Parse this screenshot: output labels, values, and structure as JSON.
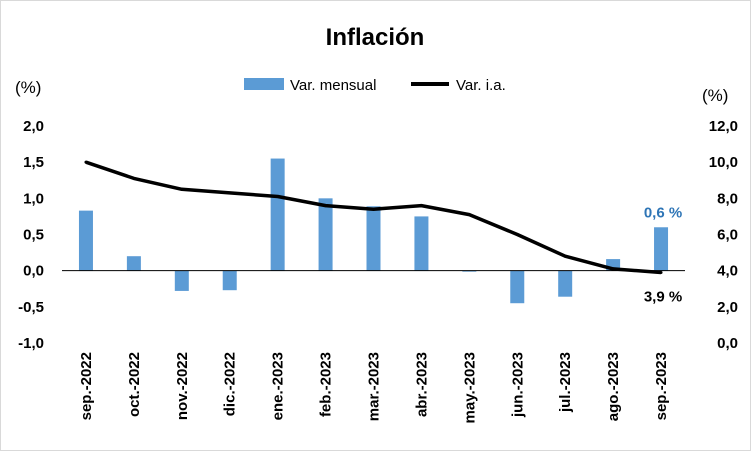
{
  "chart_data": {
    "type": "bar+line",
    "title": "Inflación",
    "left_unit": "(%)",
    "right_unit": "(%)",
    "categories": [
      "sep.-2022",
      "oct.-2022",
      "nov.-2022",
      "dic.-2022",
      "ene.-2023",
      "feb.-2023",
      "mar.-2023",
      "abr.-2023",
      "may.-2023",
      "jun.-2023",
      "jul.-2023",
      "ago.-2023",
      "sep.-2023"
    ],
    "left_ticks": [
      "-1,0",
      "-0,5",
      "0,0",
      "0,5",
      "1,0",
      "1,5",
      "2,0"
    ],
    "right_ticks": [
      "0,0",
      "2,0",
      "4,0",
      "6,0",
      "8,0",
      "10,0",
      "12,0"
    ],
    "ylim_left": [
      -1.0,
      2.0
    ],
    "ylim_right": [
      0.0,
      12.0
    ],
    "legend_position": "top-center",
    "grid": false,
    "series": [
      {
        "name": "Var. mensual",
        "type": "bar",
        "axis": "left",
        "color": "#5B9BD5",
        "values": [
          0.83,
          0.2,
          -0.28,
          -0.27,
          1.55,
          1.0,
          0.89,
          0.75,
          -0.01,
          -0.45,
          -0.36,
          0.16,
          0.6
        ]
      },
      {
        "name": "Var. i.a.",
        "type": "line",
        "axis": "right",
        "color": "#000000",
        "values": [
          10.0,
          9.1,
          8.5,
          8.3,
          8.1,
          7.6,
          7.4,
          7.6,
          7.1,
          6.0,
          4.8,
          4.1,
          3.9
        ]
      }
    ],
    "annotations": [
      {
        "series": "Var. mensual",
        "index": 12,
        "text": "0,6 %",
        "color": "#2E75B6"
      },
      {
        "series": "Var. i.a.",
        "index": 12,
        "text": "3,9 %",
        "color": "#000000"
      }
    ]
  }
}
